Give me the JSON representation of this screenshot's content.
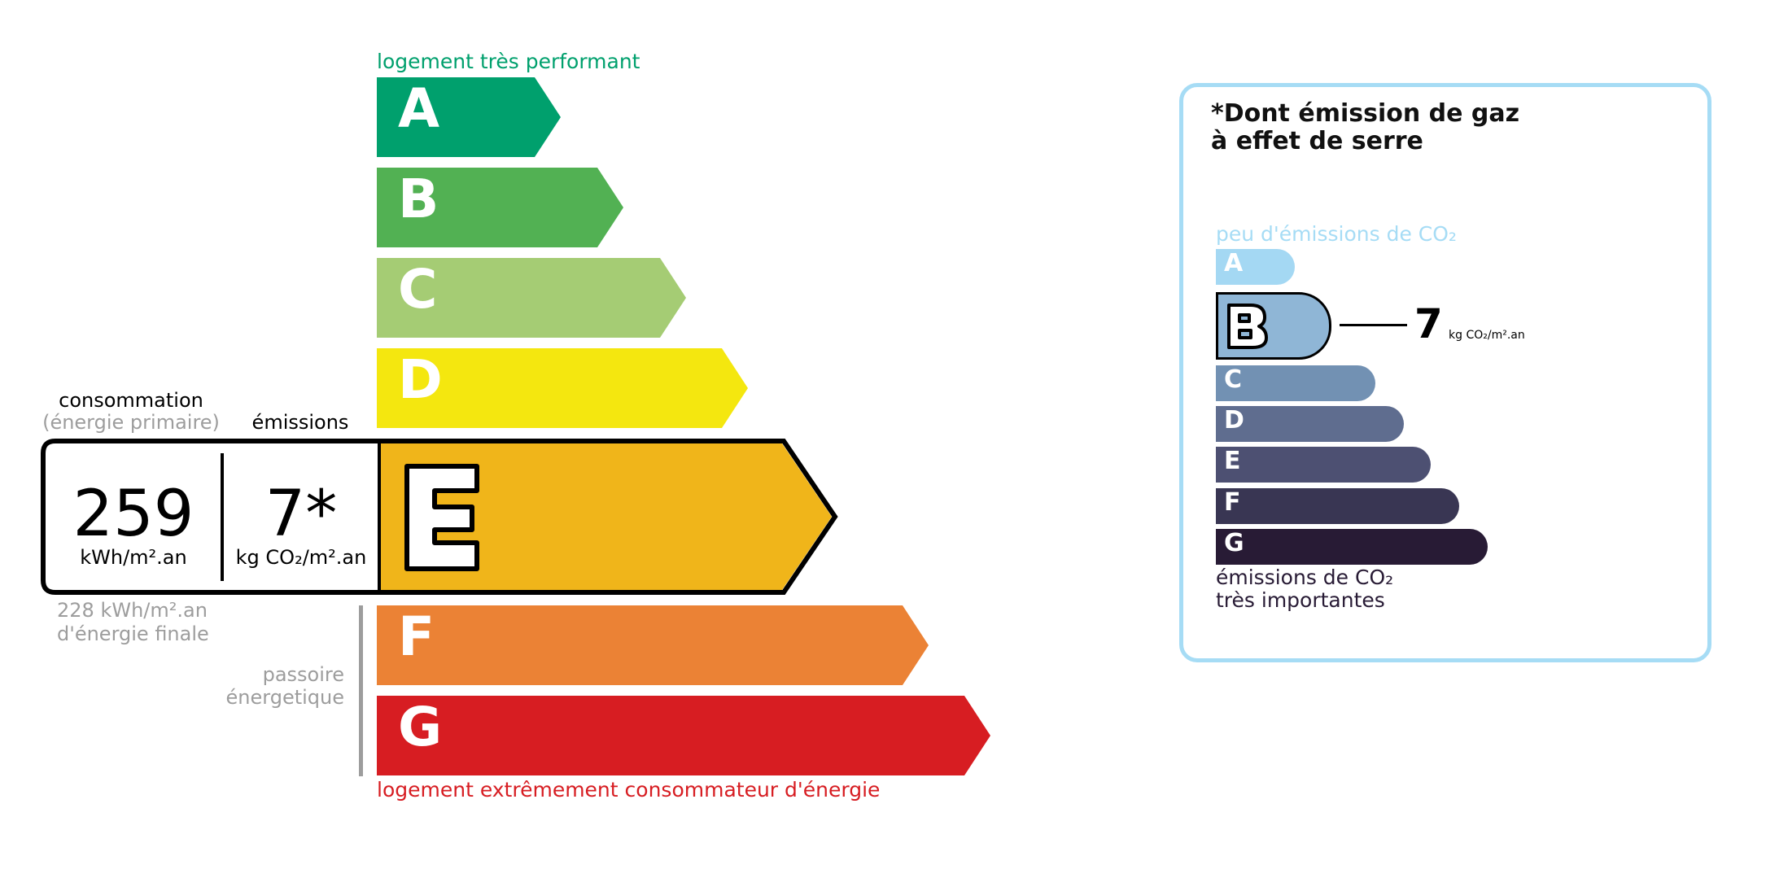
{
  "energy": {
    "top_label": "logement très performant",
    "bottom_label": "logement extrêmement consommateur d'énergie",
    "top_color": "#00a06d",
    "bottom_color": "#d71d22",
    "ratings": [
      {
        "letter": "A",
        "color": "#00a06d"
      },
      {
        "letter": "B",
        "color": "#52b153"
      },
      {
        "letter": "C",
        "color": "#a5cc74"
      },
      {
        "letter": "D",
        "color": "#f4e70f"
      },
      {
        "letter": "E",
        "color": "#f0b51a"
      },
      {
        "letter": "F",
        "color": "#eb8235"
      },
      {
        "letter": "G",
        "color": "#d71d22"
      }
    ],
    "current_rating": "E",
    "consumption_label": "consommation",
    "consumption_sublabel": "(énergie primaire)",
    "emissions_label": "émissions",
    "consumption_value": "259",
    "consumption_unit": "kWh/m².an",
    "emissions_value": "7*",
    "emissions_unit": "kg CO₂/m².an",
    "final_energy_line1": "228 kWh/m².an",
    "final_energy_line2": "d'énergie finale",
    "passoire_line1": "passoire",
    "passoire_line2": "énergetique"
  },
  "ges": {
    "title_line1": "*Dont émission de gaz",
    "title_line2": "à effet de serre",
    "top_label": "peu d'émissions de CO₂",
    "bottom_line1": "émissions de CO₂",
    "bottom_line2": "très importantes",
    "border_color": "#a6dcf5",
    "ratings": [
      {
        "letter": "A",
        "color": "#a4d8f3"
      },
      {
        "letter": "B",
        "color": "#8fb6d6"
      },
      {
        "letter": "C",
        "color": "#7291b3"
      },
      {
        "letter": "D",
        "color": "#5f6d8f"
      },
      {
        "letter": "E",
        "color": "#4d5072"
      },
      {
        "letter": "F",
        "color": "#393653"
      },
      {
        "letter": "G",
        "color": "#281b35"
      }
    ],
    "current_rating": "B",
    "value": "7",
    "unit": "kg CO₂/m².an"
  }
}
